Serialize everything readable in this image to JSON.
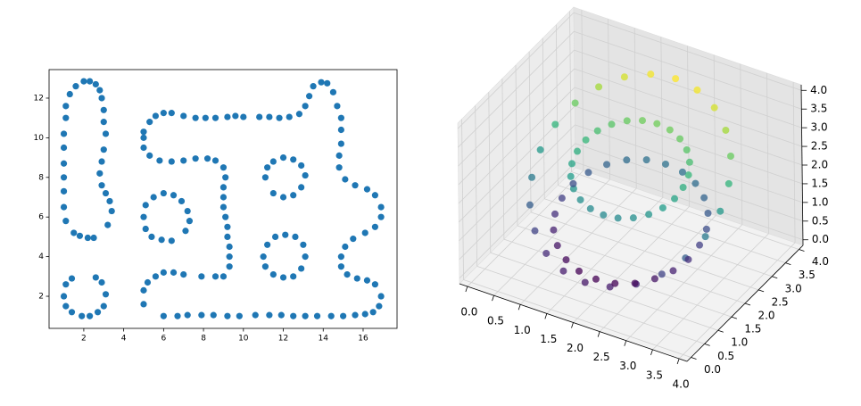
{
  "chart_data": [
    {
      "type": "scatter",
      "color": "#1f77b4",
      "xlim": [
        0.26,
        17.7
      ],
      "ylim": [
        0.38,
        13.44
      ],
      "xticks": [
        2,
        4,
        6,
        8,
        10,
        12,
        14,
        16
      ],
      "yticks": [
        2,
        4,
        6,
        8,
        10,
        12
      ],
      "x": [
        1.1,
        1.0,
        1.0,
        1.0,
        1.0,
        1.0,
        1.0,
        1.1,
        1.1,
        1.3,
        1.6,
        2.0,
        2.3,
        2.6,
        2.8,
        2.9,
        3.0,
        3.0,
        3.1,
        3.0,
        2.9,
        2.8,
        2.9,
        3.1,
        3.3,
        3.4,
        3.2,
        1.5,
        1.8,
        2.2,
        2.5,
        1.0,
        1.1,
        1.4,
        1.1,
        1.4,
        1.9,
        2.3,
        2.7,
        3.0,
        3.1,
        2.9,
        2.6,
        5.0,
        5.0,
        5.3,
        5.6,
        6.0,
        6.4,
        7.0,
        7.6,
        8.1,
        8.6,
        9.2,
        9.6,
        5.0,
        5.3,
        5.8,
        6.4,
        7.0,
        7.6,
        8.2,
        8.6,
        9.0,
        9.1,
        9.0,
        9.0,
        9.0,
        9.1,
        9.2,
        9.2,
        9.3,
        9.3,
        9.3,
        9.0,
        8.6,
        7.9,
        7.0,
        6.5,
        6.0,
        5.6,
        5.2,
        5.0,
        5.0,
        5.0,
        5.1,
        5.5,
        6.0,
        6.5,
        6.9,
        7.2,
        7.3,
        5.1,
        5.4,
        5.9,
        6.4,
        7.1,
        11.1,
        11.2,
        11.5,
        12.0,
        12.5,
        12.9,
        13.1,
        12.9,
        12.5,
        12.0,
        11.5,
        11.0,
        11.2,
        11.6,
        12.1,
        12.6,
        13.0,
        13.1,
        12.9,
        12.5,
        12.0,
        11.5,
        11.1,
        10.0,
        10.8,
        11.3,
        11.8,
        12.3,
        12.8,
        13.1,
        13.3,
        13.5,
        13.9,
        14.2,
        14.5,
        14.7,
        14.9,
        14.9,
        14.9,
        14.8,
        14.8,
        15.1,
        15.6,
        16.2,
        16.6,
        16.9,
        16.9,
        16.6,
        16.1,
        15.5,
        15.1,
        14.9,
        14.9,
        15.2,
        15.7,
        16.2,
        16.6,
        16.9,
        16.8,
        16.5,
        6.0,
        6.7,
        7.2,
        7.9,
        8.5,
        9.2,
        9.8,
        10.6,
        11.3,
        11.9,
        12.5,
        13.1,
        13.7,
        14.4,
        15.0,
        15.6,
        16.1
      ],
      "values": [
        5.8,
        6.5,
        7.3,
        8.0,
        8.7,
        9.5,
        10.2,
        11.0,
        11.6,
        12.2,
        12.6,
        12.85,
        12.85,
        12.7,
        12.4,
        12.0,
        11.4,
        10.8,
        10.2,
        9.4,
        8.8,
        8.2,
        7.6,
        7.2,
        6.8,
        6.3,
        5.6,
        5.2,
        5.05,
        4.95,
        4.95,
        2.0,
        2.6,
        2.9,
        1.5,
        1.2,
        1.0,
        1.0,
        1.2,
        1.5,
        2.1,
        2.7,
        2.95,
        10.0,
        10.3,
        10.8,
        11.1,
        11.25,
        11.25,
        11.1,
        11.0,
        11.0,
        11.0,
        11.05,
        11.1,
        9.5,
        9.1,
        8.85,
        8.8,
        8.85,
        8.95,
        8.95,
        8.85,
        8.5,
        8.0,
        7.5,
        7.0,
        6.5,
        6.0,
        5.5,
        5.0,
        4.5,
        4.0,
        3.5,
        3.0,
        3.0,
        3.0,
        3.1,
        3.2,
        3.2,
        3.0,
        2.7,
        2.3,
        1.6,
        6.0,
        6.6,
        7.0,
        7.2,
        7.1,
        6.8,
        6.3,
        5.8,
        5.4,
        5.0,
        4.85,
        4.8,
        5.3,
        8.0,
        8.5,
        8.8,
        9.0,
        8.9,
        8.6,
        8.1,
        7.5,
        7.1,
        7.0,
        7.2,
        4.0,
        4.6,
        5.0,
        5.1,
        5.0,
        4.6,
        4.0,
        3.4,
        3.0,
        2.95,
        3.1,
        3.5,
        11.05,
        11.05,
        11.05,
        11.0,
        11.05,
        11.2,
        11.6,
        12.1,
        12.6,
        12.8,
        12.75,
        12.3,
        11.6,
        11.0,
        10.4,
        9.7,
        9.1,
        8.5,
        7.9,
        7.6,
        7.4,
        7.1,
        6.5,
        6.0,
        5.5,
        5.2,
        4.9,
        4.5,
        4.0,
        3.5,
        3.1,
        2.9,
        2.8,
        2.6,
        2.0,
        1.5,
        1.2,
        1.0,
        1.0,
        1.05,
        1.05,
        1.05,
        1.0,
        1.0,
        1.05,
        1.05,
        1.05,
        1.0,
        1.0,
        1.0,
        1.0,
        1.0,
        1.05,
        1.1
      ]
    },
    {
      "type": "scatter3d",
      "cmap": "viridis",
      "xlim": [
        -0.15,
        4.15
      ],
      "ylim": [
        -0.15,
        4.15
      ],
      "zlim": [
        -0.15,
        4.15
      ],
      "xticks": [
        {
          "value": 0,
          "label": "0.0"
        },
        0.5,
        {
          "value": 1,
          "label": "1.0"
        },
        1.5,
        {
          "value": 2,
          "label": "2.0"
        },
        2.5,
        {
          "value": 3,
          "label": "3.0"
        },
        3.5,
        {
          "value": 4,
          "label": "4.0"
        }
      ],
      "yticks": [
        {
          "value": 0,
          "label": "0.0"
        },
        0.5,
        {
          "value": 1,
          "label": "1.0"
        },
        1.5,
        {
          "value": 2,
          "label": "2.0"
        },
        2.5,
        {
          "value": 3,
          "label": "3.0"
        },
        3.5,
        {
          "value": 4,
          "label": "4.0"
        }
      ],
      "zticks": [
        {
          "value": 0,
          "label": "0.0"
        },
        0.5,
        {
          "value": 1,
          "label": "1.0"
        },
        1.5,
        {
          "value": 2,
          "label": "2.0"
        },
        2.5,
        {
          "value": 3,
          "label": "3.0"
        },
        3.5,
        {
          "value": 4,
          "label": "4.0"
        }
      ],
      "x": [
        3.7,
        3.64,
        3.47,
        3.2,
        2.85,
        2.44,
        2.0,
        1.56,
        1.15,
        0.8,
        0.53,
        0.36,
        0.3,
        0.36,
        0.53,
        0.8,
        1.15,
        1.56,
        2.0,
        2.44,
        2.85,
        3.2,
        3.47,
        3.64,
        3.0,
        2.97,
        2.87,
        2.71,
        2.5,
        2.26,
        2.0,
        1.74,
        1.5,
        1.29,
        1.13,
        1.03,
        1.0,
        1.03,
        1.13,
        1.29,
        1.5,
        1.74,
        2.0,
        2.26,
        2.5,
        2.71,
        2.87,
        2.97,
        3.3,
        3.26,
        3.13,
        2.92,
        2.65,
        2.34,
        2.0,
        1.66,
        1.35,
        1.08,
        0.87,
        0.74,
        0.7,
        0.74,
        0.87,
        1.08,
        1.35,
        1.66,
        2.0,
        2.34,
        2.65,
        2.92,
        3.13,
        3.26
      ],
      "y": [
        2.0,
        2.44,
        2.85,
        3.2,
        3.47,
        3.64,
        3.7,
        3.64,
        3.47,
        3.2,
        2.85,
        2.44,
        2.0,
        1.56,
        1.15,
        0.8,
        0.53,
        0.36,
        0.3,
        0.36,
        0.53,
        0.8,
        1.15,
        1.56,
        2.0,
        2.26,
        2.5,
        2.71,
        2.87,
        2.97,
        3.0,
        2.97,
        2.87,
        2.71,
        2.5,
        2.26,
        2.0,
        1.74,
        1.5,
        1.29,
        1.13,
        1.03,
        1.0,
        1.03,
        1.13,
        1.29,
        1.5,
        1.74,
        2.0,
        2.34,
        2.65,
        2.92,
        3.13,
        3.26,
        3.3,
        3.26,
        3.13,
        2.92,
        2.65,
        2.34,
        2.0,
        1.66,
        1.35,
        1.08,
        0.87,
        0.74,
        0.7,
        0.74,
        0.87,
        1.08,
        1.35,
        1.66
      ],
      "z": [
        2.1,
        2.49,
        2.85,
        3.16,
        3.4,
        3.55,
        3.6,
        3.55,
        3.4,
        3.16,
        2.85,
        2.49,
        2.1,
        1.71,
        1.35,
        1.04,
        0.8,
        0.65,
        0.6,
        0.65,
        0.8,
        1.04,
        1.35,
        1.71,
        2.4,
        2.53,
        2.65,
        2.75,
        2.83,
        2.88,
        2.9,
        2.88,
        2.83,
        2.75,
        2.65,
        2.53,
        2.4,
        2.27,
        2.15,
        2.05,
        1.97,
        1.92,
        1.9,
        1.92,
        1.97,
        2.05,
        2.15,
        2.27,
        1.0,
        1.16,
        1.3,
        1.42,
        1.52,
        1.58,
        1.6,
        1.58,
        1.52,
        1.42,
        1.3,
        1.16,
        1.0,
        0.84,
        0.7,
        0.58,
        0.48,
        0.42,
        0.4,
        0.42,
        0.48,
        0.58,
        0.7,
        0.84
      ]
    }
  ]
}
